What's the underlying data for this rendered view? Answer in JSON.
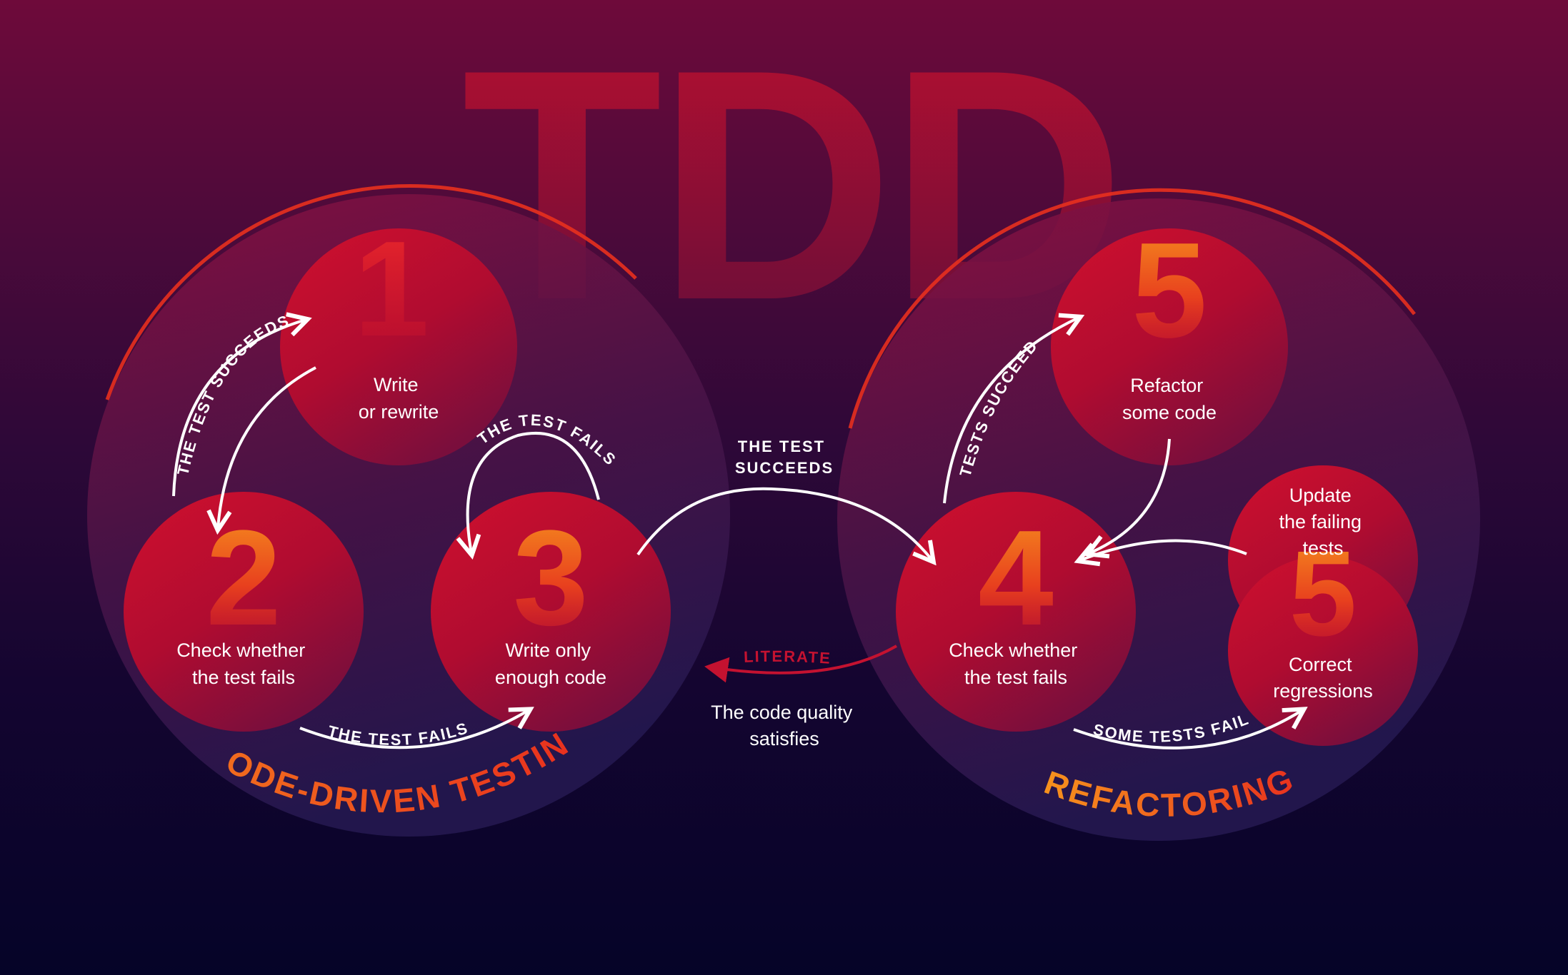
{
  "title": "TDD",
  "phases": {
    "code_driven_testing": "CODE-DRIVEN TESTING",
    "refactoring": "REFACTORING"
  },
  "steps": [
    {
      "id": "step1",
      "number": "1",
      "lines": [
        "Write",
        "or rewrite"
      ]
    },
    {
      "id": "step2",
      "number": "2",
      "lines": [
        "Check whether",
        "the test fails"
      ]
    },
    {
      "id": "step3",
      "number": "3",
      "lines": [
        "Write only",
        "enough code"
      ]
    },
    {
      "id": "step4",
      "number": "4",
      "lines": [
        "Check whether",
        "the test fails"
      ]
    },
    {
      "id": "step5a",
      "number": "5",
      "lines": [
        "Refactor",
        "some code"
      ]
    },
    {
      "id": "step5b",
      "number": "5",
      "lines_top": [
        "Update",
        "the failing",
        "tests"
      ],
      "lines_bottom": [
        "Correct",
        "regressions"
      ]
    }
  ],
  "arrows": {
    "a12": "THE TEST SUCCEEDS",
    "a23": "THE TEST FAILS",
    "a33": "THE TEST FAILS",
    "a34_line1": "THE TEST",
    "a34_line2": "SUCCEEDS",
    "a45": "TESTS SUCCEED",
    "a4_5b": "SOME TESTS FAIL",
    "literate": "LITERATE"
  },
  "quality": [
    "The code quality",
    "satisfies"
  ],
  "colors": {
    "accent_red": "#c4102e",
    "accent_orange": "#f7941d",
    "literate_red": "#c41230"
  }
}
